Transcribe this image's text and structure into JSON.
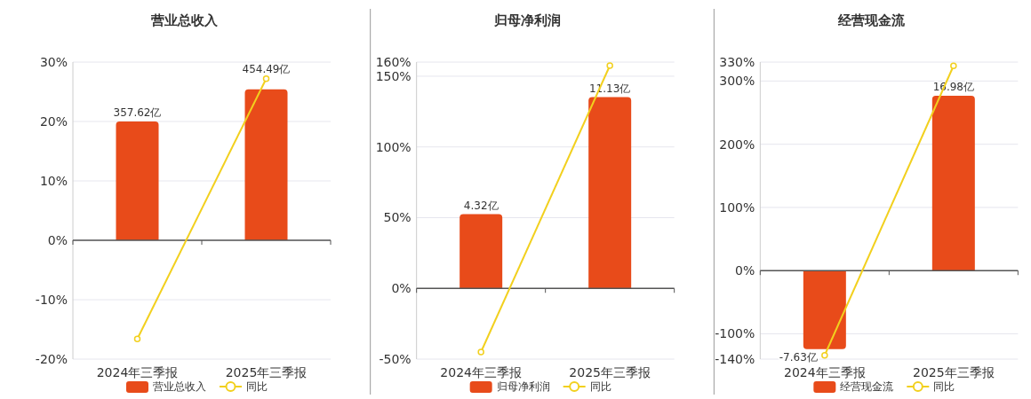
{
  "chart_data": [
    {
      "type": "bar",
      "title": "营业总收入",
      "categories": [
        "2024年三季报",
        "2025年三季报"
      ],
      "ylim": [
        -20,
        30
      ],
      "yticks": [
        {
          "value": -20,
          "label": "-20%"
        },
        {
          "value": -10,
          "label": "-10%"
        },
        {
          "value": 0,
          "label": "0%"
        },
        {
          "value": 10,
          "label": "10%"
        },
        {
          "value": 20,
          "label": "20%"
        },
        {
          "value": 30,
          "label": "30%"
        }
      ],
      "y2lim": [
        -357.62,
        536.43
      ],
      "grid": "y",
      "legend": "bottom",
      "series": [
        {
          "name": "营业总收入",
          "axis": "y2",
          "color": "#e84b1a",
          "values": [
            357.62,
            454.49
          ],
          "value_labels": [
            "357.62亿",
            "454.49亿"
          ]
        },
        {
          "name": "同比",
          "type": "line",
          "color": "#f2d01e",
          "marker": "circle",
          "values": [
            -16.6,
            27.2
          ]
        }
      ]
    },
    {
      "type": "bar",
      "title": "归母净利润",
      "categories": [
        "2024年三季报",
        "2025年三季报"
      ],
      "ylim": [
        -50,
        160
      ],
      "yticks": [
        {
          "value": -50,
          "label": "-50%"
        },
        {
          "value": 0,
          "label": "0%"
        },
        {
          "value": 50,
          "label": "50%"
        },
        {
          "value": 100,
          "label": "100%"
        },
        {
          "value": 150,
          "label": "150%"
        },
        {
          "value": 160,
          "label": "160%"
        }
      ],
      "y2lim": [
        -4.115,
        13.17
      ],
      "grid": "y",
      "legend": "bottom",
      "series": [
        {
          "name": "归母净利润",
          "axis": "y2",
          "color": "#e84b1a",
          "values": [
            4.32,
            11.13
          ],
          "value_labels": [
            "4.32亿",
            "11.13亿"
          ]
        },
        {
          "name": "同比",
          "type": "line",
          "color": "#f2d01e",
          "marker": "circle",
          "values": [
            -45,
            157.5
          ]
        }
      ]
    },
    {
      "type": "bar",
      "title": "经营现金流",
      "categories": [
        "2024年三季报",
        "2025年三季报"
      ],
      "ylim": [
        -140,
        330
      ],
      "yticks": [
        {
          "value": -140,
          "label": "-140%"
        },
        {
          "value": -100,
          "label": "-100%"
        },
        {
          "value": 0,
          "label": "0%"
        },
        {
          "value": 100,
          "label": "100%"
        },
        {
          "value": 200,
          "label": "200%"
        },
        {
          "value": 300,
          "label": "300%"
        },
        {
          "value": 330,
          "label": "330%"
        }
      ],
      "y2lim": [
        -8.59,
        20.25
      ],
      "grid": "y",
      "legend": "bottom",
      "series": [
        {
          "name": "经营现金流",
          "axis": "y2",
          "color": "#e84b1a",
          "values": [
            -7.63,
            16.98
          ],
          "value_labels": [
            "-7.63亿",
            "16.98亿"
          ]
        },
        {
          "name": "同比",
          "type": "line",
          "color": "#f2d01e",
          "marker": "circle",
          "values": [
            -134,
            324
          ]
        }
      ]
    }
  ]
}
